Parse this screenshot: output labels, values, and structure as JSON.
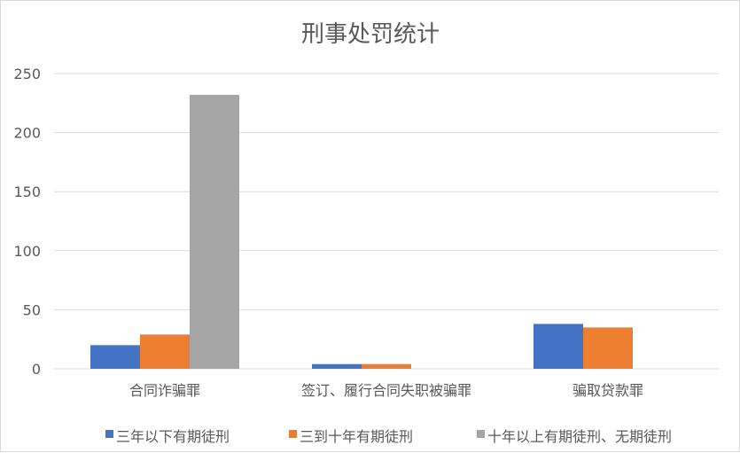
{
  "chart_data": {
    "type": "bar",
    "title": "刑事处罚统计",
    "categories": [
      "合同诈骗罪",
      "签订、履行合同失职被骗罪",
      "骗取贷款罪"
    ],
    "series": [
      {
        "name": "三年以下有期徒刑",
        "color": "#4472C4",
        "values": [
          20,
          4,
          38
        ]
      },
      {
        "name": "三到十年有期徒刑",
        "color": "#ED7D31",
        "values": [
          29,
          4,
          35
        ]
      },
      {
        "name": "十年以上有期徒刑、无期徒刑",
        "color": "#A5A5A5",
        "values": [
          232,
          0,
          0
        ]
      }
    ],
    "ylim": [
      0,
      250
    ],
    "yticks": [
      0,
      50,
      100,
      150,
      200,
      250
    ],
    "grid": true,
    "legend_position": "bottom"
  }
}
